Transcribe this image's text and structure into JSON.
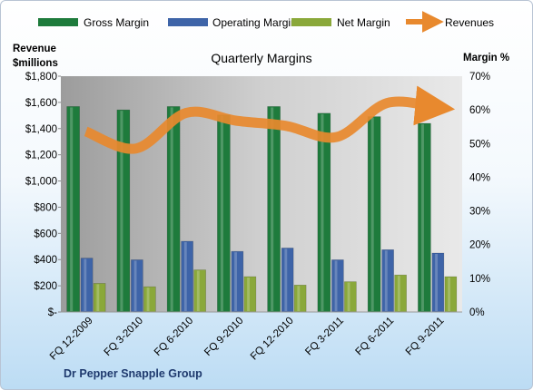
{
  "chart_data": {
    "type": "bar",
    "title": "Quarterly Margins",
    "categories": [
      "FQ 12-2009",
      "FQ 3-2010",
      "FQ 6-2010",
      "FQ 9-2010",
      "FQ 12-2010",
      "FQ 3-2011",
      "FQ 6-2011",
      "FQ 9-2011"
    ],
    "series": [
      {
        "name": "Gross Margin",
        "type": "bar",
        "axis": "right",
        "color": "#1e7b3c",
        "values": [
          61,
          60,
          61,
          58.5,
          61,
          59,
          58,
          56
        ]
      },
      {
        "name": "Operating Margin",
        "type": "bar",
        "axis": "right",
        "color": "#3e64a8",
        "values": [
          16,
          15.5,
          21,
          18,
          19,
          15.5,
          18.5,
          17.5
        ]
      },
      {
        "name": "Net Margin",
        "type": "bar",
        "axis": "right",
        "color": "#8aa83a",
        "values": [
          8.5,
          7.5,
          12.5,
          10.5,
          8,
          9,
          11,
          10.5
        ]
      },
      {
        "name": "Revenues",
        "type": "line",
        "axis": "left",
        "color": "#e8892e",
        "values": [
          1378,
          1248,
          1520,
          1460,
          1420,
          1336,
          1595,
          1560
        ]
      }
    ],
    "y_left": {
      "label": "Revenue $millions",
      "min": 0,
      "max": 1800,
      "ticks": [
        "$-",
        "$200",
        "$400",
        "$600",
        "$800",
        "$1,000",
        "$1,200",
        "$1,400",
        "$1,600",
        "$1,800"
      ]
    },
    "y_right": {
      "label": "Margin %",
      "min": 0,
      "max": 70,
      "ticks": [
        "0%",
        "10%",
        "20%",
        "30%",
        "40%",
        "50%",
        "60%",
        "70%"
      ]
    },
    "legend_position": "top",
    "grid": false,
    "footer": "Dr Pepper Snapple Group"
  }
}
